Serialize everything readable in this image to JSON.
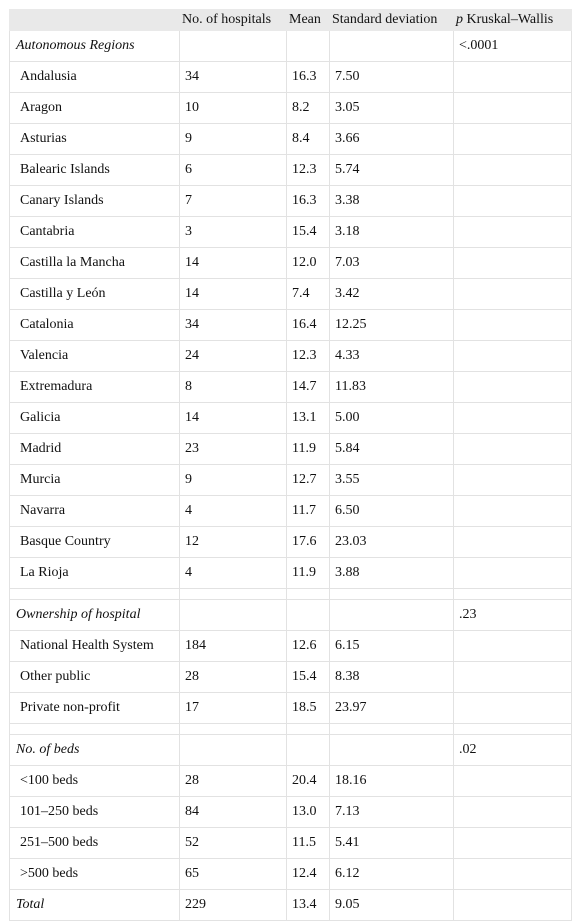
{
  "table": {
    "header": [
      "No. of hospitals",
      "Mean",
      "Standard deviation",
      {
        "symbol": "p",
        "label": "Kruskal–Wallis"
      }
    ],
    "sections": [
      {
        "title": "Autonomous Regions",
        "p": "<.0001",
        "rows": [
          [
            "Andalusia",
            "34",
            "16.3",
            "7.50"
          ],
          [
            "Aragon",
            "10",
            "8.2",
            "3.05"
          ],
          [
            "Asturias",
            "9",
            "8.4",
            "3.66"
          ],
          [
            "Balearic Islands",
            "6",
            "12.3",
            "5.74"
          ],
          [
            "Canary Islands",
            "7",
            "16.3",
            "3.38"
          ],
          [
            "Cantabria",
            "3",
            "15.4",
            "3.18"
          ],
          [
            "Castilla la Mancha",
            "14",
            "12.0",
            "7.03"
          ],
          [
            "Castilla y León",
            "14",
            "7.4",
            "3.42"
          ],
          [
            "Catalonia",
            "34",
            "16.4",
            "12.25"
          ],
          [
            "Valencia",
            "24",
            "12.3",
            "4.33"
          ],
          [
            "Extremadura",
            "8",
            "14.7",
            "11.83"
          ],
          [
            "Galicia",
            "14",
            "13.1",
            "5.00"
          ],
          [
            "Madrid",
            "23",
            "11.9",
            "5.84"
          ],
          [
            "Murcia",
            "9",
            "12.7",
            "3.55"
          ],
          [
            "Navarra",
            "4",
            "11.7",
            "6.50"
          ],
          [
            "Basque Country",
            "12",
            "17.6",
            "23.03"
          ],
          [
            "La Rioja",
            "4",
            "11.9",
            "3.88"
          ]
        ]
      },
      {
        "title": "Ownership of hospital",
        "p": ".23",
        "rows": [
          [
            "National Health System",
            "184",
            "12.6",
            "6.15"
          ],
          [
            "Other public",
            "28",
            "15.4",
            "8.38"
          ],
          [
            "Private non-profit",
            "17",
            "18.5",
            "23.97"
          ]
        ]
      },
      {
        "title": "No. of beds",
        "p": ".02",
        "rows": [
          [
            "<100 beds",
            "28",
            "20.4",
            "18.16"
          ],
          [
            "101–250 beds",
            "84",
            "13.0",
            "7.13"
          ],
          [
            "251–500 beds",
            "52",
            "11.5",
            "5.41"
          ],
          [
            ">500 beds",
            "65",
            "12.4",
            "6.12"
          ]
        ]
      }
    ],
    "total": [
      "Total",
      "229",
      "13.4",
      "9.05"
    ]
  }
}
